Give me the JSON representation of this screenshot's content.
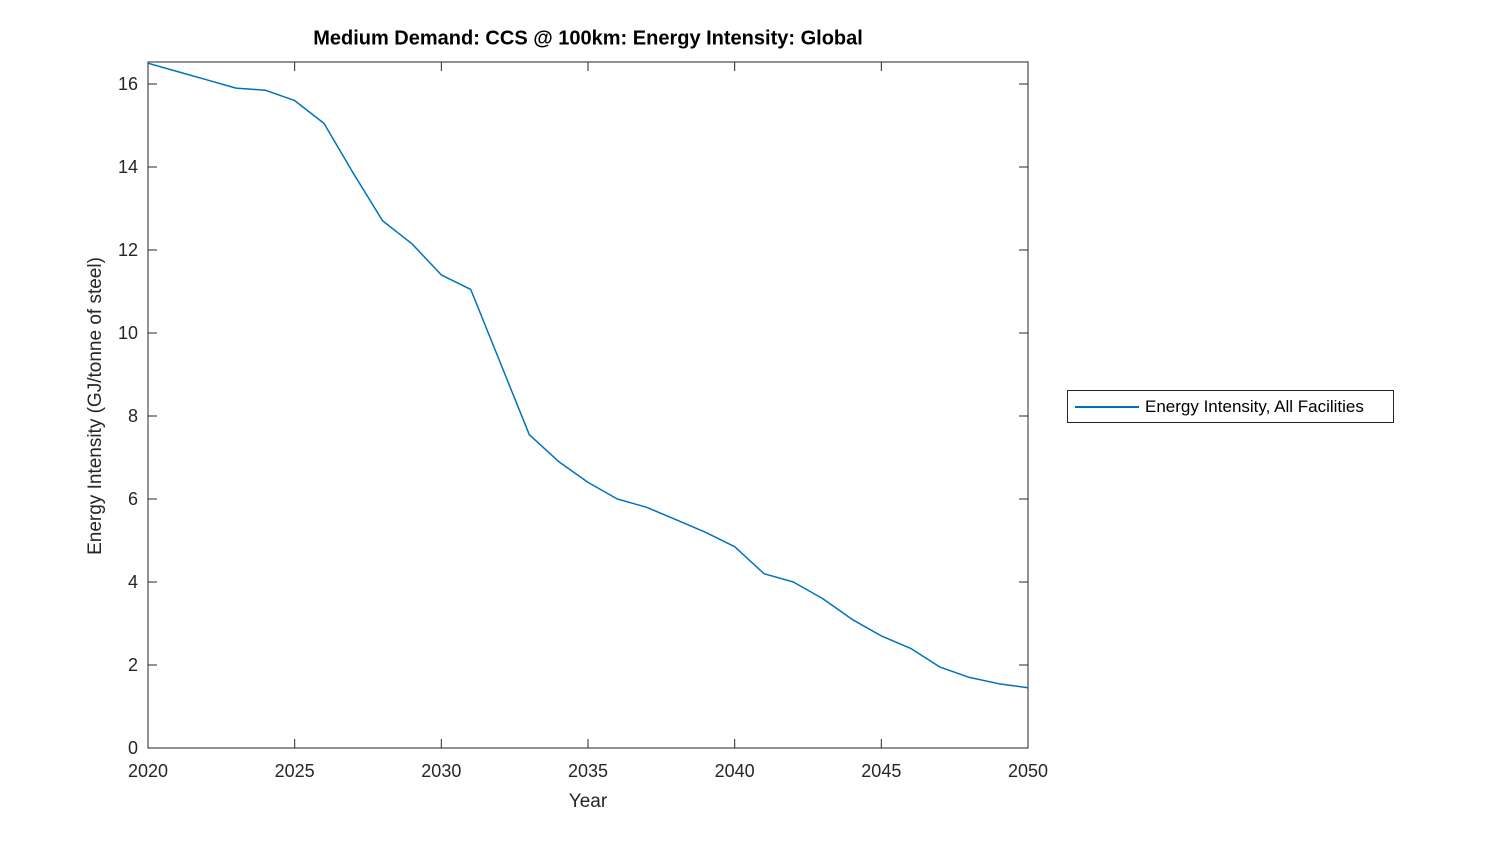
{
  "colors": {
    "axis": "#262626",
    "background": "#ffffff",
    "line": "#0072BD"
  },
  "chart_data": {
    "type": "line",
    "title": "Medium Demand: CCS @ 100km: Energy Intensity: Global",
    "xlabel": "Year",
    "ylabel": "Energy Intensity (GJ/tonne of steel)",
    "xlim": [
      2020,
      2050
    ],
    "ylim": [
      0,
      16.53
    ],
    "xticks": [
      2020,
      2025,
      2030,
      2035,
      2040,
      2045,
      2050
    ],
    "yticks": [
      0,
      2,
      4,
      6,
      8,
      10,
      12,
      14,
      16
    ],
    "grid": false,
    "box": true,
    "legend_position": "right-outside",
    "series": [
      {
        "name": "Energy Intensity, All Facilities",
        "color": "#0072BD",
        "x": [
          2020,
          2021,
          2022,
          2023,
          2024,
          2025,
          2026,
          2027,
          2028,
          2029,
          2030,
          2031,
          2032,
          2033,
          2034,
          2035,
          2036,
          2037,
          2038,
          2039,
          2040,
          2041,
          2042,
          2043,
          2044,
          2045,
          2046,
          2047,
          2048,
          2049,
          2050
        ],
        "values": [
          16.5,
          16.3,
          16.1,
          15.9,
          15.85,
          15.6,
          15.05,
          13.85,
          12.7,
          12.15,
          11.4,
          11.05,
          9.3,
          7.55,
          6.9,
          6.4,
          6.0,
          5.8,
          5.5,
          5.2,
          4.85,
          4.2,
          4.0,
          3.6,
          3.1,
          2.7,
          2.4,
          1.95,
          1.7,
          1.55,
          1.45
        ]
      }
    ]
  },
  "legend": {
    "entries": [
      {
        "label": "Energy Intensity, All Facilities",
        "color": "#0072BD"
      }
    ]
  }
}
